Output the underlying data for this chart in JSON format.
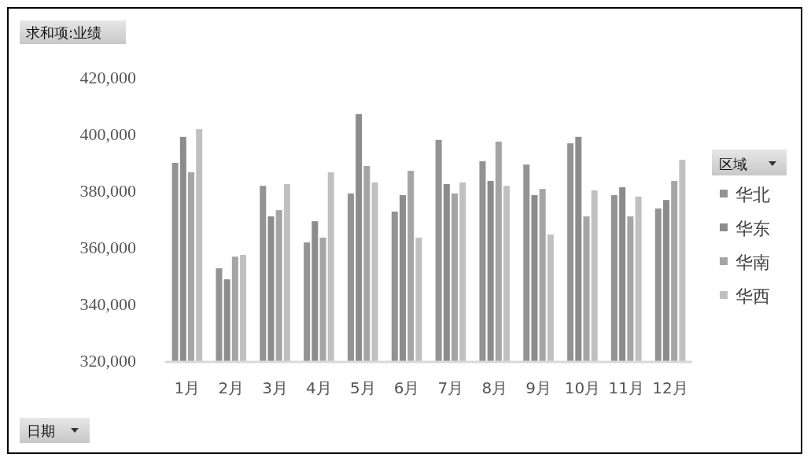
{
  "chart_data": {
    "type": "bar",
    "title": "求和项:业绩",
    "xlabel": "日期",
    "legend_title": "区域",
    "legend": "right",
    "categories": [
      "1月",
      "2月",
      "3月",
      "4月",
      "5月",
      "6月",
      "7月",
      "8月",
      "9月",
      "10月",
      "11月",
      "12月"
    ],
    "ylim": [
      320000,
      420000
    ],
    "yticks": [
      {
        "value": 320000,
        "label": "320,000"
      },
      {
        "value": 340000,
        "label": "340,000"
      },
      {
        "value": 360000,
        "label": "360,000"
      },
      {
        "value": 380000,
        "label": "380,000"
      },
      {
        "value": 400000,
        "label": "400,000"
      },
      {
        "value": 420000,
        "label": "420,000"
      }
    ],
    "series": [
      {
        "name": "华北",
        "color": "#939393",
        "values": [
          390000,
          352800,
          381900,
          361900,
          379200,
          372800,
          398100,
          390600,
          389400,
          396900,
          378600,
          373900
        ]
      },
      {
        "name": "华东",
        "color": "#8c8c8c",
        "values": [
          399200,
          348900,
          371100,
          369400,
          407200,
          378600,
          382500,
          383600,
          378600,
          399200,
          381400,
          376900
        ]
      },
      {
        "name": "华南",
        "color": "#a5a5a5",
        "values": [
          386700,
          356900,
          373300,
          363600,
          388900,
          387200,
          379200,
          397500,
          380800,
          371100,
          371100,
          383600
        ]
      },
      {
        "name": "华西",
        "color": "#c0c0c0",
        "values": [
          401900,
          357500,
          382500,
          386700,
          383100,
          363600,
          383100,
          381900,
          364700,
          380300,
          378100,
          391100
        ]
      }
    ]
  }
}
